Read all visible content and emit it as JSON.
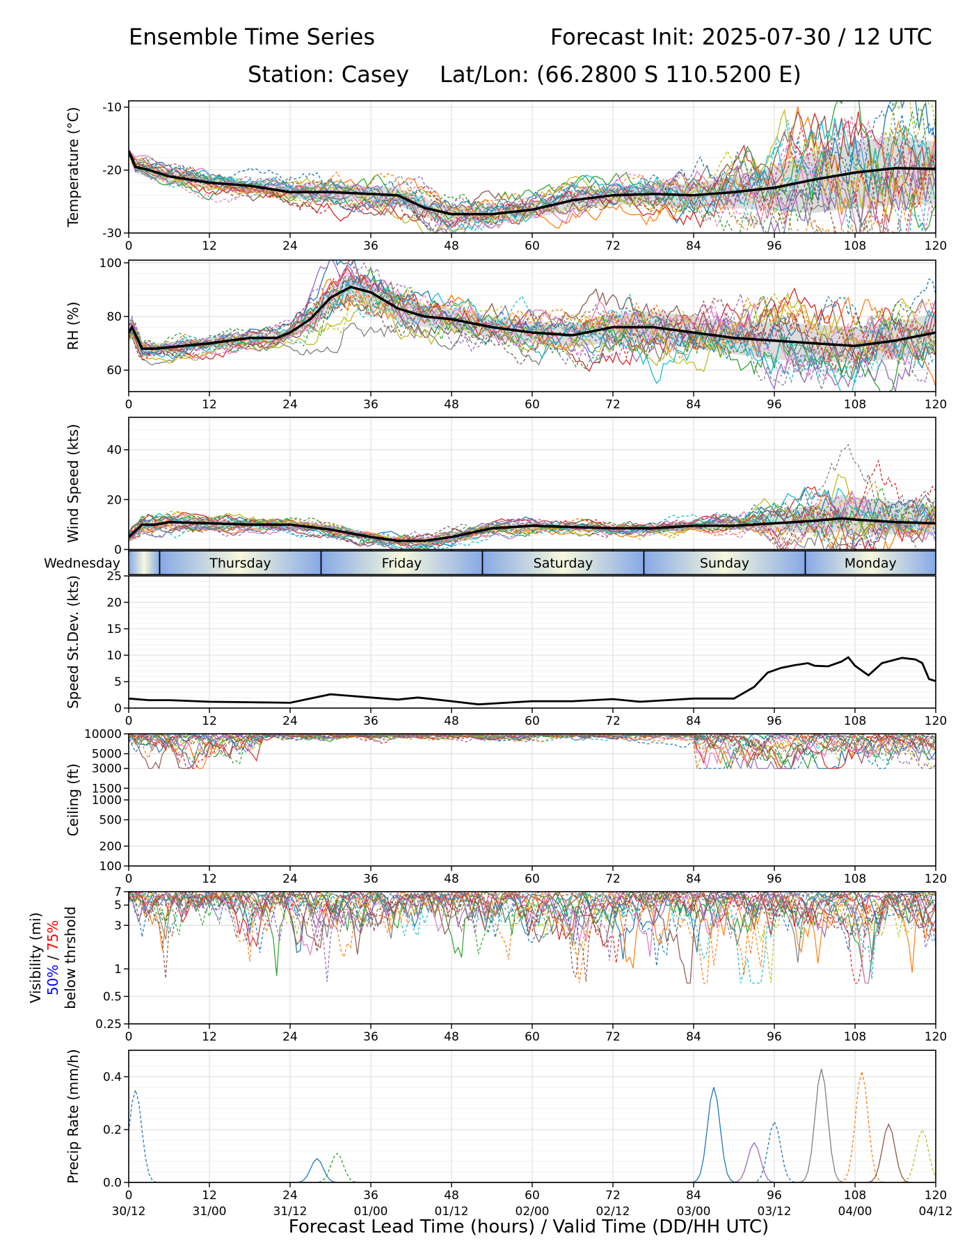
{
  "header": {
    "title_left": "Ensemble Time Series",
    "title_right": "Forecast Init: 2025-07-30 / 12 UTC",
    "station": "Station: Casey",
    "latlon": "Lat/Lon: (66.2800 S 110.5200 E)"
  },
  "x_axis": {
    "label": "Forecast Lead Time (hours) / Valid Time (DD/HH UTC)",
    "lead_ticks": [
      0,
      12,
      24,
      36,
      48,
      60,
      72,
      84,
      96,
      108,
      120
    ],
    "valid_labels": [
      "30/12",
      "31/00",
      "31/12",
      "01/00",
      "01/12",
      "02/00",
      "02/12",
      "03/00",
      "03/12",
      "04/00",
      "04/12"
    ],
    "range": [
      0,
      120
    ]
  },
  "day_strip": {
    "days": [
      "Wednesday",
      "Thursday",
      "Friday",
      "Saturday",
      "Sunday",
      "Monday"
    ],
    "boundaries": [
      4.6,
      28.6,
      52.6,
      76.6,
      100.6
    ]
  },
  "colors": {
    "mean": "#000000",
    "spread": "#d6d6d6",
    "visibility_50": "#0000ff",
    "visibility_75": "#ff0000",
    "members": [
      "#1f77b4",
      "#ff7f0e",
      "#2ca02c",
      "#d62728",
      "#9467bd",
      "#8c564b",
      "#e377c2",
      "#7f7f7f",
      "#bcbd22",
      "#17becf"
    ]
  },
  "chart_data": [
    {
      "type": "line",
      "id": "temperature",
      "ylabel": "Temperature (°C)",
      "ylim": [
        -30,
        -9
      ],
      "yticks": [
        -30,
        -20,
        -10
      ],
      "grid": true,
      "mean": {
        "x": [
          0,
          1,
          3,
          6,
          12,
          18,
          24,
          30,
          36,
          40,
          44,
          48,
          54,
          60,
          66,
          72,
          78,
          84,
          90,
          96,
          102,
          108,
          114,
          120
        ],
        "y": [
          -17,
          -19.5,
          -20,
          -21,
          -22,
          -22.5,
          -23.5,
          -23.5,
          -23.8,
          -24,
          -26,
          -27,
          -27,
          -26.3,
          -24.8,
          -24,
          -23.8,
          -24,
          -23.5,
          -22.8,
          -21.5,
          -20.4,
          -19.7,
          -19.8
        ]
      },
      "spread_low": [
        -17.5,
        -20.5,
        -21,
        -22,
        -23,
        -23.5,
        -24.5,
        -24.8,
        -25,
        -25.5,
        -27.5,
        -28.3,
        -28.3,
        -27.7,
        -26.2,
        -25.5,
        -25.5,
        -26,
        -26,
        -26.5,
        -26.8,
        -26,
        -25.5,
        -25.5
      ],
      "spread_high": [
        -16.5,
        -18.8,
        -19.2,
        -20.2,
        -21.2,
        -21.8,
        -22.5,
        -22.3,
        -22.5,
        -22.8,
        -24.5,
        -25.8,
        -25.8,
        -25,
        -23.5,
        -22.8,
        -22.3,
        -22.2,
        -21,
        -19.5,
        -17,
        -15.5,
        -14.5,
        -15.5
      ]
    },
    {
      "type": "line",
      "id": "rh",
      "ylabel": "RH (%)",
      "ylim": [
        52,
        101
      ],
      "yticks": [
        60,
        80,
        100
      ],
      "grid": true,
      "mean": {
        "x": [
          0,
          0.5,
          2,
          4,
          8,
          12,
          18,
          22,
          24,
          27,
          30,
          33,
          36,
          40,
          44,
          48,
          54,
          60,
          66,
          72,
          78,
          84,
          90,
          96,
          102,
          108,
          114,
          120
        ],
        "y": [
          74,
          76,
          68,
          68,
          69,
          70,
          72,
          72,
          74,
          79,
          87,
          91,
          89,
          83,
          80,
          79,
          76,
          74,
          73,
          76,
          76,
          74,
          72,
          71,
          70,
          69,
          71,
          74
        ]
      },
      "spread_low": [
        70,
        72,
        66,
        66,
        67,
        68,
        70,
        70,
        72,
        75,
        82,
        86,
        84,
        78,
        76,
        75,
        72,
        70,
        69,
        70,
        70,
        68,
        66,
        64,
        63,
        63,
        64,
        67
      ],
      "spread_high": [
        78,
        80,
        70,
        70,
        71,
        72,
        74,
        74,
        76,
        83,
        92,
        95,
        94,
        88,
        84,
        83,
        80,
        78,
        77,
        81,
        82,
        80,
        78,
        78,
        77,
        76,
        78,
        81
      ]
    },
    {
      "type": "line",
      "id": "wind_speed",
      "ylabel": "Wind Speed (kts)",
      "ylim": [
        0,
        53
      ],
      "yticks": [
        0,
        20,
        40
      ],
      "grid": true,
      "mean": {
        "x": [
          0,
          2,
          4,
          6,
          12,
          18,
          24,
          30,
          36,
          40,
          44,
          48,
          54,
          60,
          66,
          72,
          78,
          84,
          90,
          96,
          102,
          106,
          108,
          114,
          120
        ],
        "y": [
          5,
          10,
          10,
          11,
          10.5,
          10,
          10,
          8,
          5,
          3.5,
          3.5,
          5,
          8.5,
          9.5,
          9,
          8.5,
          8.5,
          9.5,
          9.5,
          10.5,
          11.5,
          12.5,
          12,
          11,
          10.5
        ]
      },
      "spread_low": [
        3,
        8,
        8,
        9,
        9,
        8.5,
        8.5,
        6.5,
        3.5,
        2,
        2,
        3.5,
        7,
        8,
        7.5,
        7,
        7,
        8,
        8,
        7,
        6.5,
        7,
        6.5,
        6,
        6
      ],
      "spread_high": [
        7,
        12,
        12,
        13,
        12,
        11.5,
        11.5,
        9.5,
        6.5,
        5,
        5,
        6.5,
        10,
        11,
        10.5,
        10,
        10,
        11,
        12,
        15,
        18,
        22,
        21,
        19,
        17
      ]
    },
    {
      "type": "line",
      "id": "speed_stdev",
      "ylabel": "Speed St.Dev. (kts)",
      "ylim": [
        0,
        25
      ],
      "yticks": [
        0,
        5,
        10,
        15,
        20,
        25
      ],
      "grid": true,
      "series": [
        {
          "x": [
            0,
            3,
            6,
            12,
            18,
            24,
            27,
            30,
            36,
            40,
            43,
            48,
            52,
            56,
            60,
            66,
            72,
            76,
            80,
            84,
            90,
            93,
            95,
            97,
            99,
            101,
            102,
            104,
            106,
            107,
            108,
            110,
            112,
            115,
            117,
            118,
            119,
            120
          ],
          "y": [
            1.8,
            1.5,
            1.5,
            1.2,
            1.1,
            1.0,
            1.8,
            2.6,
            2.0,
            1.6,
            2.0,
            1.3,
            0.7,
            1.0,
            1.3,
            1.3,
            1.7,
            1.2,
            1.5,
            1.8,
            1.8,
            4.0,
            6.7,
            7.6,
            8.1,
            8.5,
            8.0,
            7.9,
            8.8,
            9.6,
            8.0,
            6.2,
            8.5,
            9.5,
            9.2,
            8.5,
            5.5,
            5.1
          ]
        }
      ]
    },
    {
      "type": "line",
      "id": "ceiling",
      "ylabel": "Ceiling (ft)",
      "scale": "log",
      "ylim": [
        100,
        10000
      ],
      "yticks": [
        100,
        200,
        500,
        1000,
        1500,
        3000,
        5000,
        10000
      ],
      "grid": true
    },
    {
      "type": "line",
      "id": "visibility",
      "ylabel": "Visibility (mi)",
      "ylabel_50": "50%",
      "ylabel_sep": "/",
      "ylabel_75": "75%",
      "ylabel_suffix": "below thrshold",
      "scale": "log",
      "ylim": [
        0.25,
        7
      ],
      "yticks": [
        0.25,
        0.5,
        1,
        3,
        5,
        7
      ],
      "grid": true
    },
    {
      "type": "line",
      "id": "precip",
      "ylabel": "Precip Rate (mm/h)",
      "ylim": [
        0,
        0.5
      ],
      "yticks": [
        0.0,
        0.2,
        0.4
      ],
      "ytick_labels": [
        "0.0",
        "0.2",
        "0.4"
      ],
      "grid": true
    }
  ]
}
